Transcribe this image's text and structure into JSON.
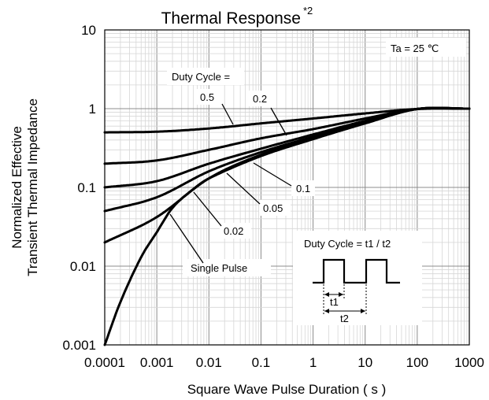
{
  "chart_data": {
    "type": "line",
    "title": "Thermal Response",
    "title_superscript": "*2",
    "xlabel": "Square Wave Pulse Duration ( s )",
    "ylabel_lines": [
      "Normalized Effective",
      "Transient Thermal Impedance"
    ],
    "x_scale": "log",
    "y_scale": "log",
    "xlim": [
      0.0001,
      1000
    ],
    "ylim": [
      0.001,
      10
    ],
    "x_ticks": [
      "0.0001",
      "0.001",
      "0.01",
      "0.1",
      "1",
      "10",
      "100",
      "1000"
    ],
    "y_ticks": [
      "0.001",
      "0.01",
      "0.1",
      "1",
      "10"
    ],
    "grid": true,
    "ambient_label": "Ta = 25 ℃",
    "duty_cycle_heading": "Duty Cycle =",
    "inset_label": "Duty Cycle = t1 / t2",
    "inset_t1": "t1",
    "inset_t2": "t2",
    "series": [
      {
        "name": "0.5",
        "points": [
          [
            0.0001,
            0.5
          ],
          [
            0.001,
            0.51
          ],
          [
            0.01,
            0.56
          ],
          [
            0.1,
            0.65
          ],
          [
            1,
            0.75
          ],
          [
            10,
            0.87
          ],
          [
            100,
            0.99
          ],
          [
            1000,
            1.0
          ]
        ]
      },
      {
        "name": "0.2",
        "points": [
          [
            0.0001,
            0.2
          ],
          [
            0.001,
            0.22
          ],
          [
            0.01,
            0.3
          ],
          [
            0.1,
            0.42
          ],
          [
            1,
            0.55
          ],
          [
            10,
            0.75
          ],
          [
            100,
            0.99
          ],
          [
            1000,
            1.0
          ]
        ]
      },
      {
        "name": "0.1",
        "points": [
          [
            0.0001,
            0.1
          ],
          [
            0.001,
            0.12
          ],
          [
            0.01,
            0.2
          ],
          [
            0.1,
            0.31
          ],
          [
            1,
            0.47
          ],
          [
            10,
            0.7
          ],
          [
            100,
            0.99
          ],
          [
            1000,
            1.0
          ]
        ]
      },
      {
        "name": "0.05",
        "points": [
          [
            0.0001,
            0.05
          ],
          [
            0.001,
            0.075
          ],
          [
            0.01,
            0.16
          ],
          [
            0.1,
            0.28
          ],
          [
            1,
            0.44
          ],
          [
            10,
            0.68
          ],
          [
            100,
            0.99
          ],
          [
            1000,
            1.0
          ]
        ]
      },
      {
        "name": "0.02",
        "points": [
          [
            0.0001,
            0.02
          ],
          [
            0.001,
            0.042
          ],
          [
            0.01,
            0.13
          ],
          [
            0.1,
            0.26
          ],
          [
            1,
            0.42
          ],
          [
            10,
            0.66
          ],
          [
            100,
            0.99
          ],
          [
            1000,
            1.0
          ]
        ]
      },
      {
        "name": "Single Pulse",
        "points": [
          [
            0.0001,
            0.001
          ],
          [
            0.0002,
            0.0035
          ],
          [
            0.0005,
            0.013
          ],
          [
            0.001,
            0.027
          ],
          [
            0.002,
            0.055
          ],
          [
            0.005,
            0.095
          ],
          [
            0.01,
            0.13
          ],
          [
            0.1,
            0.25
          ],
          [
            1,
            0.41
          ],
          [
            10,
            0.65
          ],
          [
            100,
            0.99
          ],
          [
            1000,
            1.0
          ]
        ]
      }
    ]
  }
}
